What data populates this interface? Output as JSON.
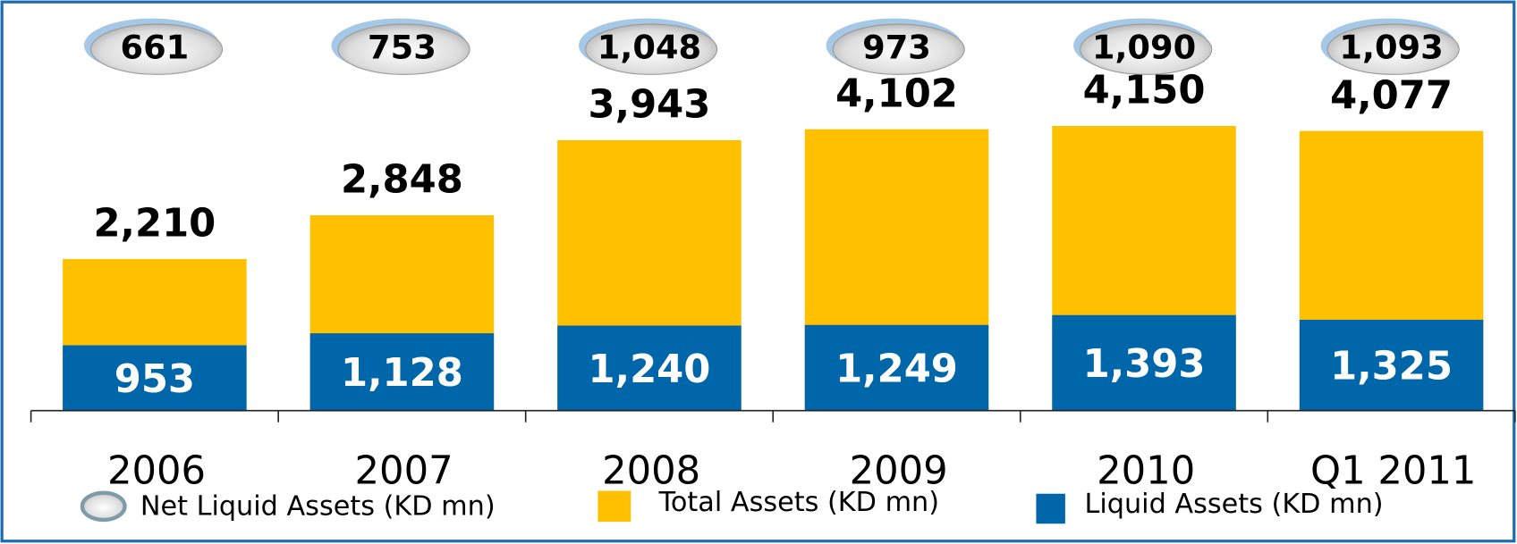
{
  "chart_data": {
    "type": "bar",
    "categories": [
      "2006",
      "2007",
      "2008",
      "2009",
      "2010",
      "Q1 2011"
    ],
    "series": [
      {
        "name": "Net Liquid Assets (KD mn)",
        "color": "#d9d9d9",
        "values": [
          661,
          753,
          1048,
          973,
          1090,
          1093
        ],
        "value_labels": [
          "661",
          "753",
          "1,048",
          "973",
          "1,090",
          "1,093"
        ]
      },
      {
        "name": "Total Assets (KD mn)",
        "color": "#ffc000",
        "values": [
          2210,
          2848,
          3943,
          4102,
          4150,
          4077
        ],
        "value_labels": [
          "2,210",
          "2,848",
          "3,943",
          "4,102",
          "4,150",
          "4,077"
        ]
      },
      {
        "name": "Liquid Assets (KD mn)",
        "color": "#0066aa",
        "values": [
          953,
          1128,
          1240,
          1249,
          1393,
          1325
        ],
        "value_labels": [
          "953",
          "1,128",
          "1,240",
          "1,249",
          "1,393",
          "1,325"
        ]
      }
    ],
    "ylim": [
      0,
      5000
    ]
  }
}
